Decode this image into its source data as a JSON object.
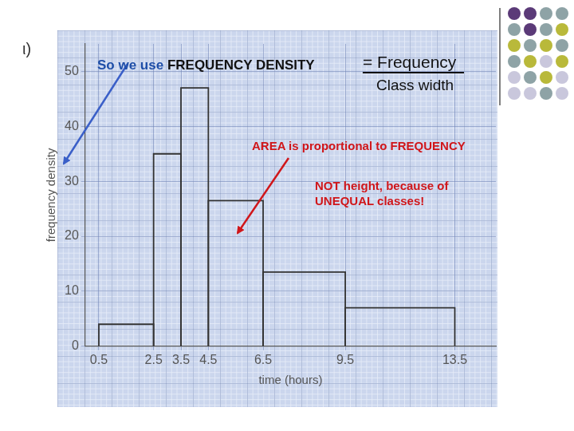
{
  "chart_data": {
    "type": "histogram",
    "bins": [
      0.5,
      2.5,
      3.5,
      4.5,
      6.5,
      9.5,
      13.5
    ],
    "values": [
      4,
      35,
      47,
      26.5,
      13.5,
      7
    ],
    "color": "#333333",
    "x_label": "time (hours)",
    "y_label": "frequency density",
    "xlim": [
      0,
      15
    ],
    "ylim": [
      0,
      55
    ],
    "xticks": [
      0.5,
      2.5,
      3.5,
      4.5,
      6.5,
      9.5,
      13.5
    ],
    "yticks": [
      0,
      10,
      20,
      30,
      40,
      50
    ],
    "grid": true,
    "annotations": [
      "ι)",
      "So we use",
      "FREQUENCY DENSITY",
      "= Frequency",
      "Class width",
      "AREA is proportional to FREQUENCY",
      "NOT height, because of",
      "UNEQUAL classes!"
    ]
  }
}
